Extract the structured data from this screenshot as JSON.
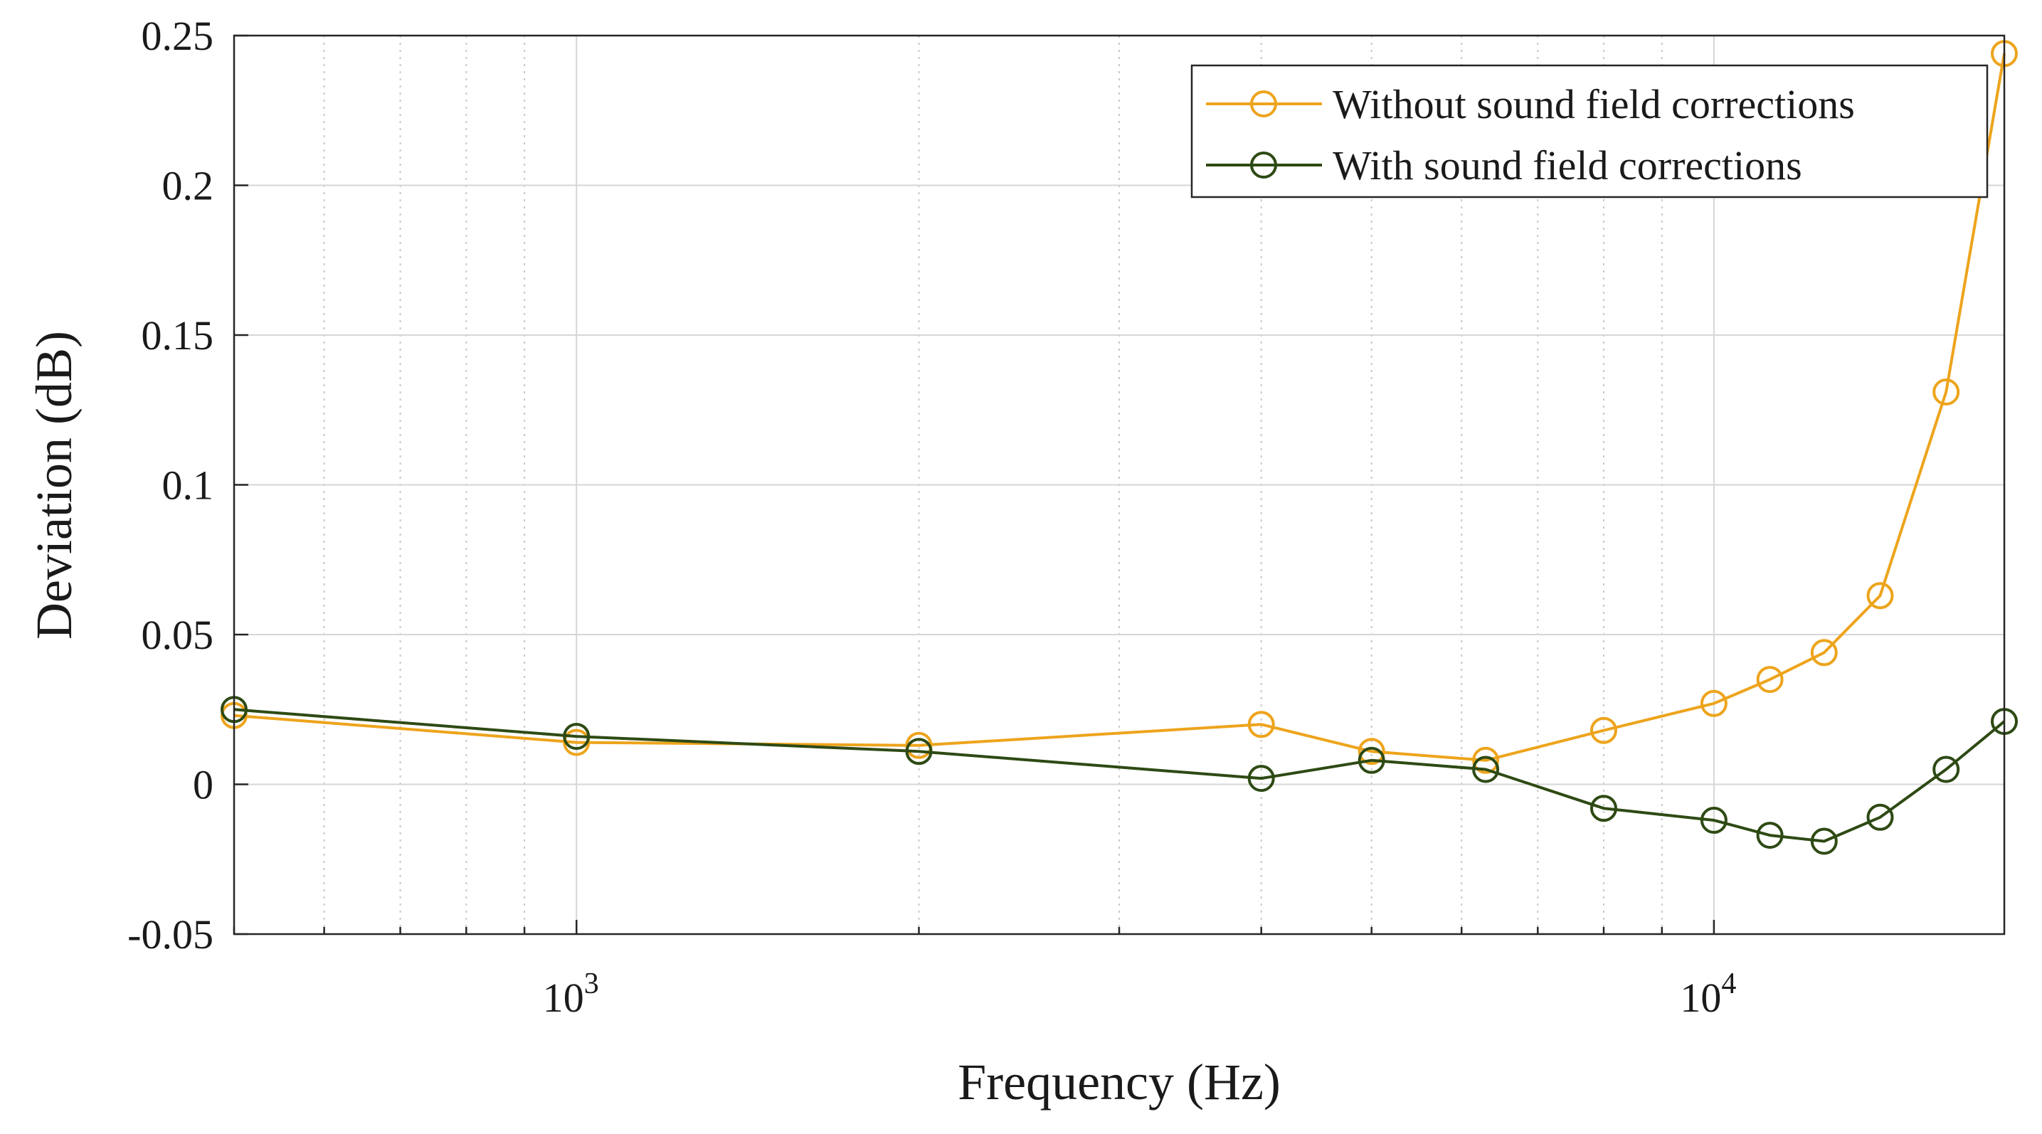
{
  "chart_data": {
    "type": "line",
    "title": "",
    "xlabel": "Frequency (Hz)",
    "ylabel": "Deviation (dB)",
    "xscale": "log",
    "xlim": [
      500,
      18000
    ],
    "ylim": [
      -0.05,
      0.25
    ],
    "grid": true,
    "legend_location": "top-right",
    "x_ticks": [
      {
        "value": 1000,
        "base": "10",
        "exp": "3"
      },
      {
        "value": 10000,
        "base": "10",
        "exp": "4"
      }
    ],
    "y_ticks": [
      {
        "value": -0.05,
        "label": "-0.05"
      },
      {
        "value": 0,
        "label": "0"
      },
      {
        "value": 0.05,
        "label": "0.05"
      },
      {
        "value": 0.1,
        "label": "0.1"
      },
      {
        "value": 0.15,
        "label": "0.15"
      },
      {
        "value": 0.2,
        "label": "0.2"
      },
      {
        "value": 0.25,
        "label": "0.25"
      }
    ],
    "x": [
      500,
      1000,
      2000,
      4000,
      5000,
      6300,
      8000,
      10000,
      11200,
      12500,
      14000,
      16000,
      18000
    ],
    "series": [
      {
        "name": "Without sound field corrections",
        "color": "#EDA41C",
        "marker": "circle",
        "values": [
          0.023,
          0.014,
          0.013,
          0.02,
          0.011,
          0.008,
          0.018,
          0.027,
          0.035,
          0.044,
          0.063,
          0.131,
          0.244
        ]
      },
      {
        "name": "With sound field corrections",
        "color": "#2E4A14",
        "marker": "circle",
        "values": [
          0.025,
          0.016,
          0.011,
          0.002,
          0.008,
          0.005,
          -0.008,
          -0.012,
          -0.017,
          -0.019,
          -0.011,
          0.005,
          0.021
        ]
      }
    ]
  }
}
